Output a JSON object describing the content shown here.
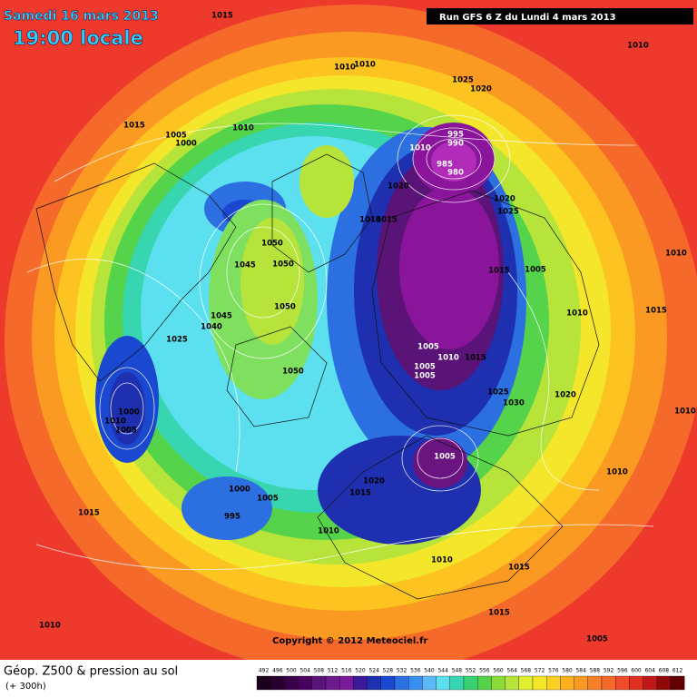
{
  "header": {
    "date": "Samedi 16 mars 2013",
    "time": "19:00 locale",
    "run": "Run GFS 6 Z du Lundi 4 mars 2013"
  },
  "isobar_labels": [
    "1015",
    "1010",
    "1010",
    "1010",
    "1025",
    "1020",
    "1015",
    "1005",
    "1000",
    "1010",
    "995",
    "990",
    "1010",
    "985",
    "980",
    "1020",
    "1020",
    "1025",
    "1010",
    "1015",
    "1050",
    "1045",
    "1050",
    "1015",
    "1005",
    "1010",
    "1015",
    "1010",
    "1050",
    "1045",
    "1040",
    "1025",
    "1005",
    "1010",
    "1015",
    "1005",
    "1005",
    "1050",
    "1025",
    "1030",
    "1020",
    "1010",
    "1000",
    "1010",
    "1005",
    "1005",
    "1010",
    "1020",
    "1015",
    "1000",
    "1005",
    "995",
    "1015",
    "1010",
    "1010",
    "1015",
    "1015",
    "1010",
    "1005"
  ],
  "copyright": "Copyright © 2012 Meteociel.fr",
  "footer": {
    "title": "Géop. Z500 & pression au sol",
    "lead": "(+ 300h)"
  },
  "colorbar": {
    "labels": [
      "492",
      "496",
      "500",
      "504",
      "508",
      "512",
      "516",
      "520",
      "524",
      "528",
      "532",
      "536",
      "540",
      "544",
      "548",
      "552",
      "556",
      "560",
      "564",
      "568",
      "572",
      "576",
      "580",
      "584",
      "588",
      "592",
      "596",
      "600",
      "604",
      "608",
      "612"
    ]
  }
}
